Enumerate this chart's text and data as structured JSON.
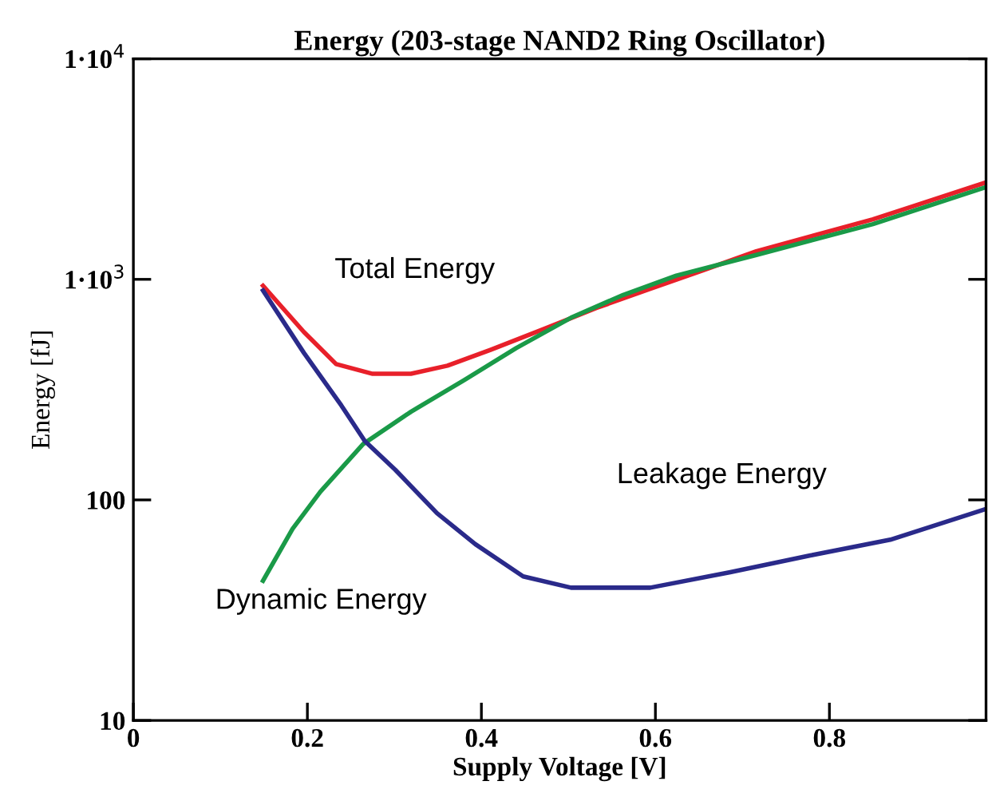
{
  "chart_data": {
    "type": "line",
    "title": "Energy (203-stage NAND2 Ring Oscillator)",
    "xlabel": "Supply Voltage [V]",
    "ylabel": "Energy [fJ]",
    "log": "y",
    "grid": false,
    "legend": false,
    "xlim": [
      0,
      0.98
    ],
    "xticks": [
      0,
      0.2,
      0.4,
      0.6,
      0.8
    ],
    "ylim": [
      10,
      10000
    ],
    "yticks": [
      10,
      100,
      {
        "value": 1000,
        "label": "1·10$^{3}$"
      },
      {
        "value": 10000,
        "label": "1·10$^{4}$"
      }
    ],
    "series": [
      {
        "name": "Total Energy",
        "color": "#e8202a",
        "x": [
          0.149,
          0.196,
          0.233,
          0.275,
          0.319,
          0.361,
          0.411,
          0.472,
          0.532,
          0.594,
          0.655,
          0.716,
          0.85,
          0.98
        ],
        "values": [
          935,
          577,
          413,
          373,
          373,
          406,
          480,
          596,
          741,
          906,
          1100,
          1340,
          1870,
          2750
        ]
      },
      {
        "name": "Dynamic Energy",
        "color": "#1a9a48",
        "x": [
          0.149,
          0.183,
          0.215,
          0.264,
          0.319,
          0.38,
          0.44,
          0.503,
          0.563,
          0.624,
          0.716,
          0.85,
          0.98
        ],
        "values": [
          43,
          74,
          109,
          179,
          251,
          349,
          488,
          670,
          850,
          1040,
          1290,
          1780,
          2620
        ]
      },
      {
        "name": "Leakage Energy",
        "color": "#2a2a8a",
        "x": [
          0.149,
          0.196,
          0.239,
          0.266,
          0.301,
          0.349,
          0.393,
          0.448,
          0.503,
          0.594,
          0.686,
          0.778,
          0.87,
          0.98
        ],
        "values": [
          890,
          464,
          268,
          185,
          137,
          87,
          63,
          45,
          40,
          40,
          47,
          56,
          66,
          91
        ]
      }
    ]
  }
}
